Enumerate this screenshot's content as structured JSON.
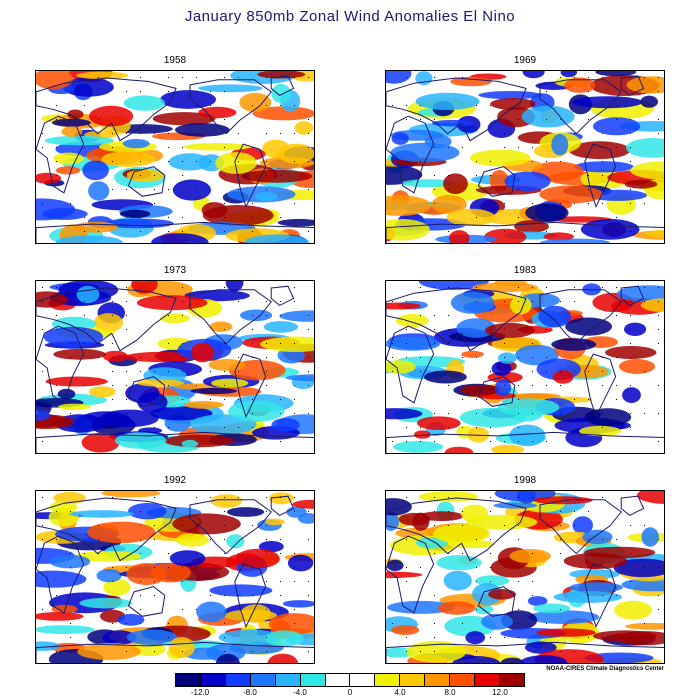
{
  "title": "January 850mb Zonal Wind Anomalies El Nino",
  "panels": [
    {
      "label": "1958"
    },
    {
      "label": "1969"
    },
    {
      "label": "1973"
    },
    {
      "label": "1983"
    },
    {
      "label": "1992"
    },
    {
      "label": "1998"
    }
  ],
  "credit": "NOAA-CIRES Climate Diagnostics Center",
  "colorbar": {
    "colors": [
      "#00007f",
      "#0000c8",
      "#0f3cff",
      "#1e78ff",
      "#28b4ff",
      "#32e6e6",
      "#ffffff",
      "#ffffff",
      "#f0f000",
      "#ffc800",
      "#ff9600",
      "#ff5000",
      "#e60000",
      "#a00000"
    ],
    "labels": [
      "-12.0",
      "-8.0",
      "-4.0",
      "0",
      "4.0",
      "8.0",
      "12.0"
    ]
  },
  "colors": {
    "title": "#1a1a6e",
    "coastline": "#1a1a6e"
  }
}
